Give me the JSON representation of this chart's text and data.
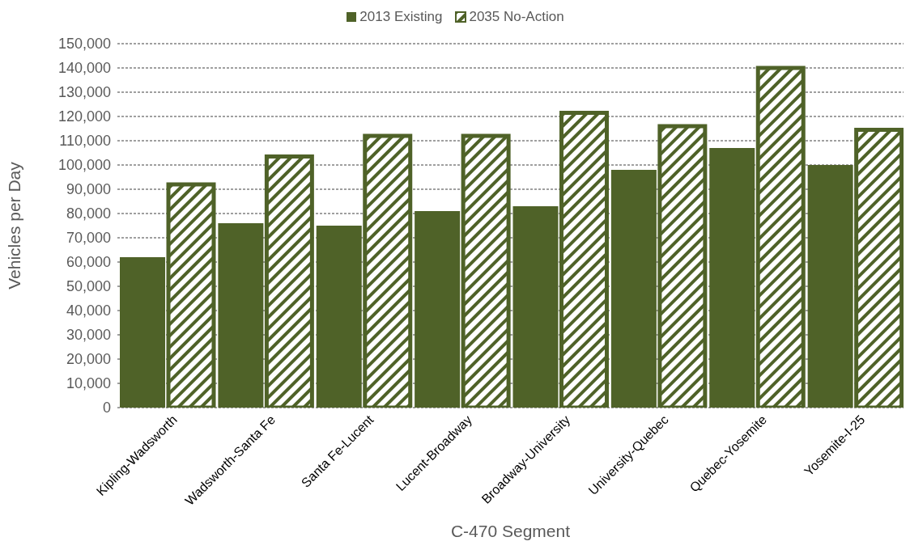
{
  "chart_data": {
    "type": "bar",
    "xlabel": "C-470 Segment",
    "ylabel": "Vehicles per Day",
    "categories": [
      "Kipling-Wadsworth",
      "Wadsworth-Santa Fe",
      "Santa Fe-Lucent",
      "Lucent-Broadway",
      "Broadway-University",
      "University-Quebec",
      "Quebec-Yosemite",
      "Yosemite-I-25"
    ],
    "series": [
      {
        "name": "2013 Existing",
        "color": "#4f6228",
        "values": [
          62000,
          76000,
          75000,
          81000,
          83000,
          98000,
          107000,
          100000
        ]
      },
      {
        "name": "2035 No-Action",
        "color": "#4f6228",
        "values": [
          92000,
          103500,
          112000,
          112000,
          121500,
          116000,
          140000,
          114500
        ]
      }
    ],
    "ylim": [
      0,
      150000
    ],
    "yticks": [
      0,
      {
        "value": 10000,
        "label": "10,000"
      },
      {
        "value": 20000,
        "label": "20,000"
      },
      {
        "value": 30000,
        "label": "30,000"
      },
      {
        "value": 40000,
        "label": "40,000"
      },
      {
        "value": 50000,
        "label": "50,000"
      },
      {
        "value": 60000,
        "label": "60,000"
      },
      {
        "value": 70000,
        "label": "70,000"
      },
      {
        "value": 80000,
        "label": "80,000"
      },
      {
        "value": 90000,
        "label": "90,000"
      },
      {
        "value": 100000,
        "label": "100,000"
      },
      {
        "value": 110000,
        "label": "110,000"
      },
      {
        "value": 120000,
        "label": "120,000"
      },
      {
        "value": 130000,
        "label": "130,000"
      },
      {
        "value": 140000,
        "label": "140,000"
      },
      {
        "value": 150000,
        "label": "150,000"
      }
    ],
    "grid": "y",
    "legend": "top"
  }
}
